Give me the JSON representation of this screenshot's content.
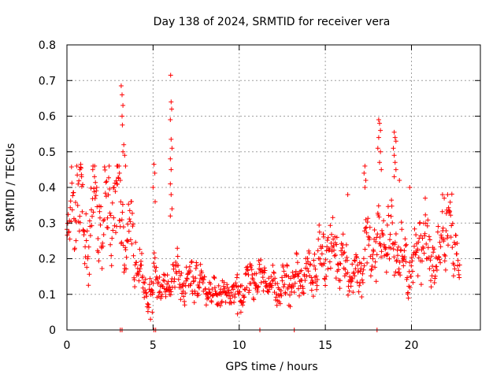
{
  "chart_data": {
    "type": "scatter",
    "title": "Day 138 of 2024, SRMTID for receiver vera",
    "xlabel": "GPS time / hours",
    "ylabel": "SRMTID / TECUs",
    "xlim": [
      0,
      24
    ],
    "ylim": [
      0,
      0.8
    ],
    "grid": true,
    "marker": "+",
    "color": "#ff0000",
    "x_ticks": [
      0,
      5,
      10,
      15,
      20
    ],
    "x_tick_labels": [
      "0",
      "5",
      "10",
      "15",
      "20"
    ],
    "y_ticks": [
      0,
      0.1,
      0.2,
      0.3,
      0.4,
      0.5,
      0.6,
      0.7,
      0.8
    ],
    "y_tick_labels": [
      "0",
      "0.1",
      "0.2",
      "0.3",
      "0.4",
      "0.5",
      "0.6",
      "0.7",
      "0.8"
    ],
    "series": [
      {
        "name": "SRMTID",
        "profile": [
          [
            0.0,
            0.23
          ],
          [
            0.3,
            0.36
          ],
          [
            0.6,
            0.38
          ],
          [
            0.9,
            0.3
          ],
          [
            1.2,
            0.24
          ],
          [
            1.5,
            0.36
          ],
          [
            1.8,
            0.32
          ],
          [
            2.1,
            0.3
          ],
          [
            2.4,
            0.35
          ],
          [
            2.7,
            0.34
          ],
          [
            3.0,
            0.38
          ],
          [
            3.2,
            0.3
          ],
          [
            3.4,
            0.22
          ],
          [
            3.7,
            0.28
          ],
          [
            4.0,
            0.22
          ],
          [
            4.3,
            0.16
          ],
          [
            4.6,
            0.12
          ],
          [
            4.9,
            0.1
          ],
          [
            5.1,
            0.16
          ],
          [
            5.4,
            0.13
          ],
          [
            5.7,
            0.11
          ],
          [
            6.0,
            0.14
          ],
          [
            6.3,
            0.17
          ],
          [
            6.6,
            0.14
          ],
          [
            7.0,
            0.13
          ],
          [
            7.5,
            0.15
          ],
          [
            8.0,
            0.12
          ],
          [
            8.5,
            0.1
          ],
          [
            9.0,
            0.11
          ],
          [
            9.5,
            0.1
          ],
          [
            10.0,
            0.1
          ],
          [
            10.5,
            0.13
          ],
          [
            11.0,
            0.15
          ],
          [
            11.5,
            0.14
          ],
          [
            12.0,
            0.12
          ],
          [
            12.5,
            0.12
          ],
          [
            13.0,
            0.14
          ],
          [
            13.5,
            0.15
          ],
          [
            14.0,
            0.16
          ],
          [
            14.5,
            0.18
          ],
          [
            15.0,
            0.22
          ],
          [
            15.5,
            0.24
          ],
          [
            16.0,
            0.19
          ],
          [
            16.5,
            0.15
          ],
          [
            17.0,
            0.16
          ],
          [
            17.5,
            0.24
          ],
          [
            18.0,
            0.22
          ],
          [
            18.5,
            0.26
          ],
          [
            19.0,
            0.24
          ],
          [
            19.5,
            0.2
          ],
          [
            20.0,
            0.16
          ],
          [
            20.5,
            0.26
          ],
          [
            21.0,
            0.21
          ],
          [
            21.5,
            0.19
          ],
          [
            22.0,
            0.29
          ],
          [
            22.5,
            0.23
          ],
          [
            22.8,
            0.21
          ]
        ],
        "points": [
          [
            3.15,
            0.685
          ],
          [
            3.2,
            0.66
          ],
          [
            3.25,
            0.63
          ],
          [
            3.2,
            0.6
          ],
          [
            3.22,
            0.575
          ],
          [
            3.3,
            0.52
          ],
          [
            3.25,
            0.5
          ],
          [
            3.35,
            0.49
          ],
          [
            3.4,
            0.46
          ],
          [
            6.02,
            0.715
          ],
          [
            6.05,
            0.64
          ],
          [
            6.08,
            0.62
          ],
          [
            6.0,
            0.59
          ],
          [
            6.05,
            0.535
          ],
          [
            6.1,
            0.51
          ],
          [
            6.0,
            0.48
          ],
          [
            6.05,
            0.45
          ],
          [
            6.0,
            0.41
          ],
          [
            6.05,
            0.38
          ],
          [
            6.1,
            0.34
          ],
          [
            6.0,
            0.32
          ],
          [
            5.05,
            0.465
          ],
          [
            5.1,
            0.44
          ],
          [
            5.0,
            0.4
          ],
          [
            5.12,
            0.36
          ],
          [
            0.8,
            0.465
          ],
          [
            0.75,
            0.45
          ],
          [
            0.85,
            0.43
          ],
          [
            1.5,
            0.45
          ],
          [
            1.6,
            0.43
          ],
          [
            3.05,
            0.44
          ],
          [
            3.1,
            0.42
          ],
          [
            2.9,
            0.41
          ],
          [
            18.1,
            0.59
          ],
          [
            18.15,
            0.58
          ],
          [
            18.2,
            0.56
          ],
          [
            18.1,
            0.54
          ],
          [
            18.05,
            0.51
          ],
          [
            18.2,
            0.5
          ],
          [
            18.15,
            0.47
          ],
          [
            18.25,
            0.45
          ],
          [
            19.0,
            0.555
          ],
          [
            19.05,
            0.54
          ],
          [
            19.1,
            0.53
          ],
          [
            18.95,
            0.51
          ],
          [
            19.0,
            0.49
          ],
          [
            19.05,
            0.47
          ],
          [
            19.1,
            0.45
          ],
          [
            19.0,
            0.43
          ],
          [
            17.3,
            0.46
          ],
          [
            17.25,
            0.44
          ],
          [
            17.35,
            0.42
          ],
          [
            17.3,
            0.4
          ],
          [
            16.3,
            0.38
          ],
          [
            21.8,
            0.38
          ],
          [
            21.9,
            0.37
          ],
          [
            22.1,
            0.38
          ],
          [
            4.85,
            0.03
          ],
          [
            4.95,
            0.05
          ],
          [
            9.9,
            0.045
          ],
          [
            10.1,
            0.05
          ],
          [
            19.3,
            0.42
          ],
          [
            19.9,
            0.4
          ],
          [
            20.8,
            0.37
          ]
        ],
        "baseline_x": [
          3.1,
          3.2,
          5.05,
          5.15,
          11.2,
          13.2,
          18.0
        ]
      }
    ]
  }
}
